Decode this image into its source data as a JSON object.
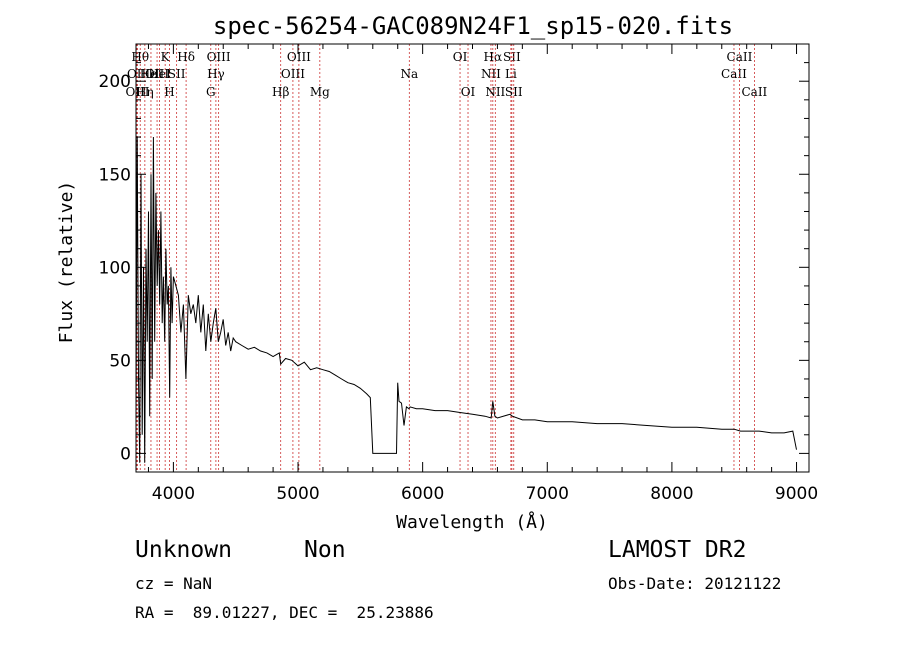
{
  "chart_data": {
    "type": "line",
    "title": "spec-56254-GAC089N24F1_sp15-020.fits",
    "xlabel": "Wavelength (Å)",
    "ylabel": "Flux (relative)",
    "xlim": [
      3700,
      9100
    ],
    "ylim": [
      -10,
      220
    ],
    "xticks": [
      4000,
      5000,
      6000,
      7000,
      8000,
      9000
    ],
    "yticks": [
      0,
      50,
      100,
      150,
      200
    ],
    "grid": false,
    "line_color": "#000000",
    "marker_color": "#cc3333",
    "series": [
      {
        "x": [
          3700,
          3710,
          3720,
          3730,
          3740,
          3750,
          3760,
          3770,
          3780,
          3790,
          3800,
          3810,
          3820,
          3830,
          3840,
          3850,
          3860,
          3870,
          3880,
          3890,
          3900,
          3910,
          3920,
          3930,
          3940,
          3950,
          3960,
          3970,
          3980,
          3990,
          4000,
          4020,
          4040,
          4060,
          4080,
          4100,
          4120,
          4140,
          4160,
          4180,
          4200,
          4220,
          4240,
          4260,
          4280,
          4300,
          4320,
          4340,
          4360,
          4380,
          4400,
          4420,
          4440,
          4460,
          4480,
          4500,
          4550,
          4600,
          4650,
          4700,
          4750,
          4800,
          4850,
          4861,
          4900,
          4950,
          5000,
          5050,
          5100,
          5150,
          5200,
          5250,
          5300,
          5350,
          5400,
          5450,
          5500,
          5550,
          5580,
          5600,
          5650,
          5700,
          5750,
          5790,
          5800,
          5810,
          5830,
          5850,
          5870,
          5890,
          5900,
          5950,
          6000,
          6100,
          6200,
          6300,
          6400,
          6500,
          6550,
          6563,
          6580,
          6600,
          6700,
          6720,
          6800,
          6900,
          7000,
          7200,
          7400,
          7600,
          7800,
          8000,
          8200,
          8400,
          8500,
          8550,
          8600,
          8700,
          8800,
          8900,
          8970,
          9000
        ],
        "y": [
          20,
          170,
          40,
          -5,
          150,
          10,
          100,
          -5,
          110,
          60,
          130,
          20,
          150,
          40,
          170,
          60,
          140,
          90,
          120,
          80,
          130,
          70,
          95,
          60,
          110,
          80,
          90,
          30,
          100,
          70,
          95,
          90,
          85,
          65,
          80,
          40,
          85,
          75,
          80,
          70,
          85,
          65,
          80,
          55,
          75,
          60,
          70,
          78,
          60,
          65,
          72,
          58,
          65,
          55,
          62,
          60,
          58,
          56,
          57,
          55,
          54,
          52,
          54,
          48,
          51,
          50,
          47,
          49,
          45,
          46,
          45,
          44,
          42,
          40,
          38,
          37,
          35,
          32,
          30,
          0,
          0,
          0,
          0,
          0,
          38,
          28,
          27,
          15,
          25,
          24,
          25,
          24,
          24,
          23,
          23,
          22,
          21,
          20,
          19,
          28,
          20,
          19,
          21,
          20,
          18,
          18,
          17,
          17,
          16,
          16,
          15,
          14,
          14,
          13,
          13,
          12,
          12,
          12,
          11,
          11,
          12,
          2
        ]
      }
    ],
    "line_markers": [
      {
        "wavelength": 3705,
        "labels": [
          "OII"
        ],
        "row": 1
      },
      {
        "wavelength": 3712,
        "labels": [
          "OIII"
        ],
        "row": 2
      },
      {
        "wavelength": 3734,
        "labels": [
          "Hθ"
        ],
        "row": 0
      },
      {
        "wavelength": 3771,
        "labels": [
          "Hη"
        ],
        "row": 2
      },
      {
        "wavelength": 3820,
        "labels": [
          "HeI"
        ],
        "row": 1
      },
      {
        "wavelength": 3869,
        "labels": [
          "OIII"
        ],
        "row": 1
      },
      {
        "wavelength": 3889,
        "labels": [
          "HeI"
        ],
        "row": 1
      },
      {
        "wavelength": 3934,
        "labels": [
          "K"
        ],
        "row": 0
      },
      {
        "wavelength": 3969,
        "labels": [
          "H"
        ],
        "row": 2
      },
      {
        "wavelength": 4026,
        "labels": [
          "SII"
        ],
        "row": 1
      },
      {
        "wavelength": 4102,
        "labels": [
          "Hδ"
        ],
        "row": 0
      },
      {
        "wavelength": 4300,
        "labels": [
          "G"
        ],
        "row": 2
      },
      {
        "wavelength": 4341,
        "labels": [
          "Hγ"
        ],
        "row": 1
      },
      {
        "wavelength": 4363,
        "labels": [
          "OIII"
        ],
        "row": 0
      },
      {
        "wavelength": 4861,
        "labels": [
          "Hβ"
        ],
        "row": 2
      },
      {
        "wavelength": 4959,
        "labels": [
          "OIII"
        ],
        "row": 1
      },
      {
        "wavelength": 5007,
        "labels": [
          "OIII"
        ],
        "row": 0
      },
      {
        "wavelength": 5175,
        "labels": [
          "Mg"
        ],
        "row": 2
      },
      {
        "wavelength": 5893,
        "labels": [
          "Na"
        ],
        "row": 1
      },
      {
        "wavelength": 6300,
        "labels": [
          "OI"
        ],
        "row": 0
      },
      {
        "wavelength": 6364,
        "labels": [
          "OI"
        ],
        "row": 2
      },
      {
        "wavelength": 6548,
        "labels": [
          "NII"
        ],
        "row": 1
      },
      {
        "wavelength": 6563,
        "labels": [
          "Hα"
        ],
        "row": 0
      },
      {
        "wavelength": 6583,
        "labels": [
          "NII"
        ],
        "row": 2
      },
      {
        "wavelength": 6708,
        "labels": [
          "Li"
        ],
        "row": 1
      },
      {
        "wavelength": 6716,
        "labels": [
          "SII"
        ],
        "row": 0
      },
      {
        "wavelength": 6731,
        "labels": [
          "SII"
        ],
        "row": 2
      },
      {
        "wavelength": 8498,
        "labels": [
          "CaII"
        ],
        "row": 1
      },
      {
        "wavelength": 8542,
        "labels": [
          "CaII"
        ],
        "row": 0
      },
      {
        "wavelength": 8662,
        "labels": [
          "CaII"
        ],
        "row": 2
      }
    ]
  },
  "info": {
    "class": "Unknown",
    "subclass": "Non",
    "survey": "LAMOST DR2",
    "redshift": "cz = NaN",
    "obs_date": "Obs-Date: 20121122",
    "coords": "RA =  89.01227, DEC =  25.23886"
  }
}
